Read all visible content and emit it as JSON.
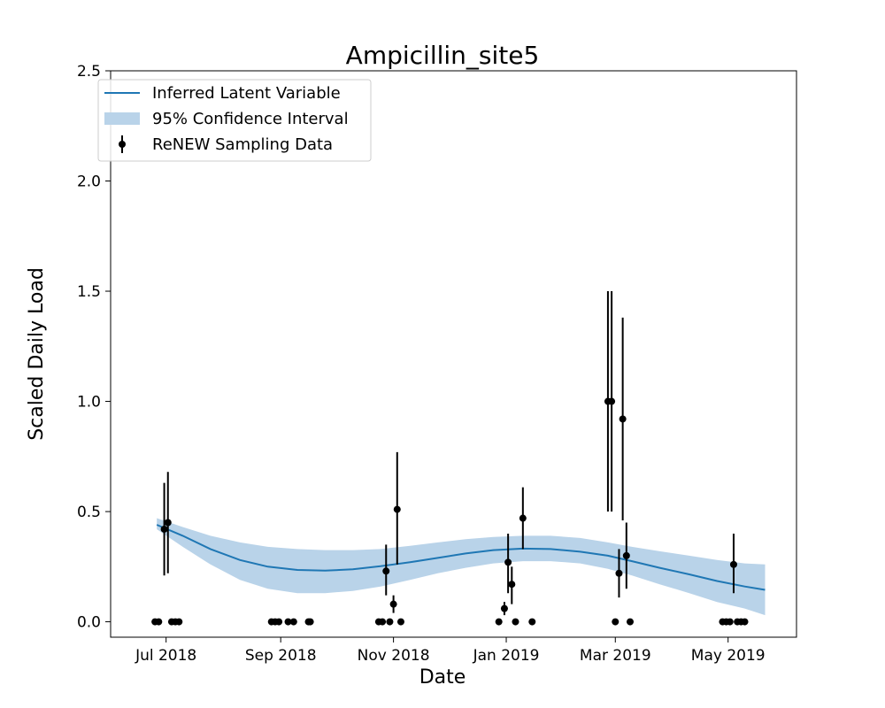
{
  "chart_data": {
    "type": "scatter",
    "title": "Ampicillin_site5",
    "xlabel": "Date",
    "ylabel": "Scaled Daily Load",
    "xlim": [
      "2018-06-01",
      "2019-06-07"
    ],
    "ylim": [
      -0.07,
      2.5
    ],
    "x_ticks": [
      {
        "date": "2018-07-01",
        "label": "Jul 2018"
      },
      {
        "date": "2018-09-01",
        "label": "Sep 2018"
      },
      {
        "date": "2018-11-01",
        "label": "Nov 2018"
      },
      {
        "date": "2019-01-01",
        "label": "Jan 2019"
      },
      {
        "date": "2019-03-01",
        "label": "Mar 2019"
      },
      {
        "date": "2019-05-01",
        "label": "May 2019"
      }
    ],
    "y_ticks": [
      {
        "value": 0.0,
        "label": "0.0"
      },
      {
        "value": 0.5,
        "label": "0.5"
      },
      {
        "value": 1.0,
        "label": "1.0"
      },
      {
        "value": 1.5,
        "label": "1.5"
      },
      {
        "value": 2.0,
        "label": "2.0"
      },
      {
        "value": 2.5,
        "label": "2.5"
      }
    ],
    "grid": false,
    "legend_position": "top-left",
    "legend": [
      {
        "label": "Inferred Latent Variable",
        "kind": "line"
      },
      {
        "label": "95% Confidence Interval",
        "kind": "band"
      },
      {
        "label": "ReNEW Sampling Data",
        "kind": "errorbar"
      }
    ],
    "colors": {
      "line": "#1f77b4",
      "band": "#b9d3e9",
      "points": "#000000",
      "axes": "#000000"
    },
    "series": [
      {
        "name": "Inferred Latent Variable",
        "kind": "line",
        "points": [
          {
            "x": "2018-06-26",
            "y": 0.44
          },
          {
            "x": "2018-07-10",
            "y": 0.39
          },
          {
            "x": "2018-07-25",
            "y": 0.33
          },
          {
            "x": "2018-08-10",
            "y": 0.28
          },
          {
            "x": "2018-08-25",
            "y": 0.25
          },
          {
            "x": "2018-09-10",
            "y": 0.235
          },
          {
            "x": "2018-09-25",
            "y": 0.232
          },
          {
            "x": "2018-10-10",
            "y": 0.238
          },
          {
            "x": "2018-10-25",
            "y": 0.252
          },
          {
            "x": "2018-11-10",
            "y": 0.27
          },
          {
            "x": "2018-11-25",
            "y": 0.29
          },
          {
            "x": "2018-12-10",
            "y": 0.31
          },
          {
            "x": "2018-12-25",
            "y": 0.325
          },
          {
            "x": "2019-01-10",
            "y": 0.332
          },
          {
            "x": "2019-01-25",
            "y": 0.33
          },
          {
            "x": "2019-02-10",
            "y": 0.318
          },
          {
            "x": "2019-02-25",
            "y": 0.3
          },
          {
            "x": "2019-03-10",
            "y": 0.275
          },
          {
            "x": "2019-03-25",
            "y": 0.245
          },
          {
            "x": "2019-04-10",
            "y": 0.215
          },
          {
            "x": "2019-04-25",
            "y": 0.185
          },
          {
            "x": "2019-05-10",
            "y": 0.16
          },
          {
            "x": "2019-05-21",
            "y": 0.145
          }
        ]
      },
      {
        "name": "95% Confidence Interval",
        "kind": "band",
        "points": [
          {
            "x": "2018-06-26",
            "lower": 0.42,
            "upper": 0.47
          },
          {
            "x": "2018-07-10",
            "lower": 0.34,
            "upper": 0.43
          },
          {
            "x": "2018-07-25",
            "lower": 0.26,
            "upper": 0.39
          },
          {
            "x": "2018-08-10",
            "lower": 0.19,
            "upper": 0.36
          },
          {
            "x": "2018-08-25",
            "lower": 0.15,
            "upper": 0.34
          },
          {
            "x": "2018-09-10",
            "lower": 0.13,
            "upper": 0.33
          },
          {
            "x": "2018-09-25",
            "lower": 0.13,
            "upper": 0.325
          },
          {
            "x": "2018-10-10",
            "lower": 0.14,
            "upper": 0.325
          },
          {
            "x": "2018-10-25",
            "lower": 0.16,
            "upper": 0.33
          },
          {
            "x": "2018-11-10",
            "lower": 0.19,
            "upper": 0.345
          },
          {
            "x": "2018-11-25",
            "lower": 0.22,
            "upper": 0.36
          },
          {
            "x": "2018-12-10",
            "lower": 0.245,
            "upper": 0.375
          },
          {
            "x": "2018-12-25",
            "lower": 0.265,
            "upper": 0.385
          },
          {
            "x": "2019-01-10",
            "lower": 0.275,
            "upper": 0.39
          },
          {
            "x": "2019-01-25",
            "lower": 0.275,
            "upper": 0.39
          },
          {
            "x": "2019-02-10",
            "lower": 0.265,
            "upper": 0.38
          },
          {
            "x": "2019-02-25",
            "lower": 0.24,
            "upper": 0.36
          },
          {
            "x": "2019-03-10",
            "lower": 0.21,
            "upper": 0.34
          },
          {
            "x": "2019-03-25",
            "lower": 0.17,
            "upper": 0.32
          },
          {
            "x": "2019-04-10",
            "lower": 0.13,
            "upper": 0.3
          },
          {
            "x": "2019-04-25",
            "lower": 0.09,
            "upper": 0.28
          },
          {
            "x": "2019-05-10",
            "lower": 0.06,
            "upper": 0.265
          },
          {
            "x": "2019-05-21",
            "lower": 0.03,
            "upper": 0.26
          }
        ]
      },
      {
        "name": "ReNEW Sampling Data",
        "kind": "errorbar",
        "points": [
          {
            "x": "2018-06-25",
            "y": 0.0
          },
          {
            "x": "2018-06-27",
            "y": 0.0
          },
          {
            "x": "2018-06-30",
            "y": 0.42,
            "lower": 0.21,
            "upper": 0.63
          },
          {
            "x": "2018-07-02",
            "y": 0.45,
            "lower": 0.22,
            "upper": 0.68
          },
          {
            "x": "2018-07-04",
            "y": 0.0
          },
          {
            "x": "2018-07-06",
            "y": 0.0
          },
          {
            "x": "2018-07-08",
            "y": 0.0
          },
          {
            "x": "2018-08-27",
            "y": 0.0
          },
          {
            "x": "2018-08-29",
            "y": 0.0
          },
          {
            "x": "2018-08-31",
            "y": 0.0
          },
          {
            "x": "2018-09-05",
            "y": 0.0
          },
          {
            "x": "2018-09-08",
            "y": 0.0
          },
          {
            "x": "2018-09-16",
            "y": 0.0
          },
          {
            "x": "2018-09-17",
            "y": 0.0
          },
          {
            "x": "2018-10-24",
            "y": 0.0
          },
          {
            "x": "2018-10-26",
            "y": 0.0
          },
          {
            "x": "2018-10-28",
            "y": 0.23,
            "lower": 0.12,
            "upper": 0.35
          },
          {
            "x": "2018-10-30",
            "y": 0.0
          },
          {
            "x": "2018-11-01",
            "y": 0.08,
            "lower": 0.04,
            "upper": 0.12
          },
          {
            "x": "2018-11-03",
            "y": 0.51,
            "lower": 0.26,
            "upper": 0.77
          },
          {
            "x": "2018-11-05",
            "y": 0.0
          },
          {
            "x": "2018-12-28",
            "y": 0.0
          },
          {
            "x": "2018-12-31",
            "y": 0.06,
            "lower": 0.03,
            "upper": 0.09
          },
          {
            "x": "2019-01-02",
            "y": 0.27,
            "lower": 0.13,
            "upper": 0.4
          },
          {
            "x": "2019-01-04",
            "y": 0.17,
            "lower": 0.08,
            "upper": 0.25
          },
          {
            "x": "2019-01-06",
            "y": 0.0
          },
          {
            "x": "2019-01-10",
            "y": 0.47,
            "lower": 0.33,
            "upper": 0.61
          },
          {
            "x": "2019-01-15",
            "y": 0.0
          },
          {
            "x": "2019-02-25",
            "y": 1.0,
            "lower": 0.5,
            "upper": 1.5
          },
          {
            "x": "2019-02-27",
            "y": 1.0,
            "lower": 0.5,
            "upper": 1.5
          },
          {
            "x": "2019-03-01",
            "y": 0.0
          },
          {
            "x": "2019-03-03",
            "y": 0.22,
            "lower": 0.11,
            "upper": 0.33
          },
          {
            "x": "2019-03-05",
            "y": 0.92,
            "lower": 0.46,
            "upper": 1.38
          },
          {
            "x": "2019-03-07",
            "y": 0.3,
            "lower": 0.15,
            "upper": 0.45
          },
          {
            "x": "2019-03-09",
            "y": 0.0
          },
          {
            "x": "2019-04-28",
            "y": 0.0
          },
          {
            "x": "2019-04-30",
            "y": 0.0
          },
          {
            "x": "2019-05-02",
            "y": 0.0
          },
          {
            "x": "2019-05-04",
            "y": 0.26,
            "lower": 0.13,
            "upper": 0.4
          },
          {
            "x": "2019-05-06",
            "y": 0.0
          },
          {
            "x": "2019-05-08",
            "y": 0.0
          },
          {
            "x": "2019-05-10",
            "y": 0.0
          }
        ]
      }
    ]
  }
}
